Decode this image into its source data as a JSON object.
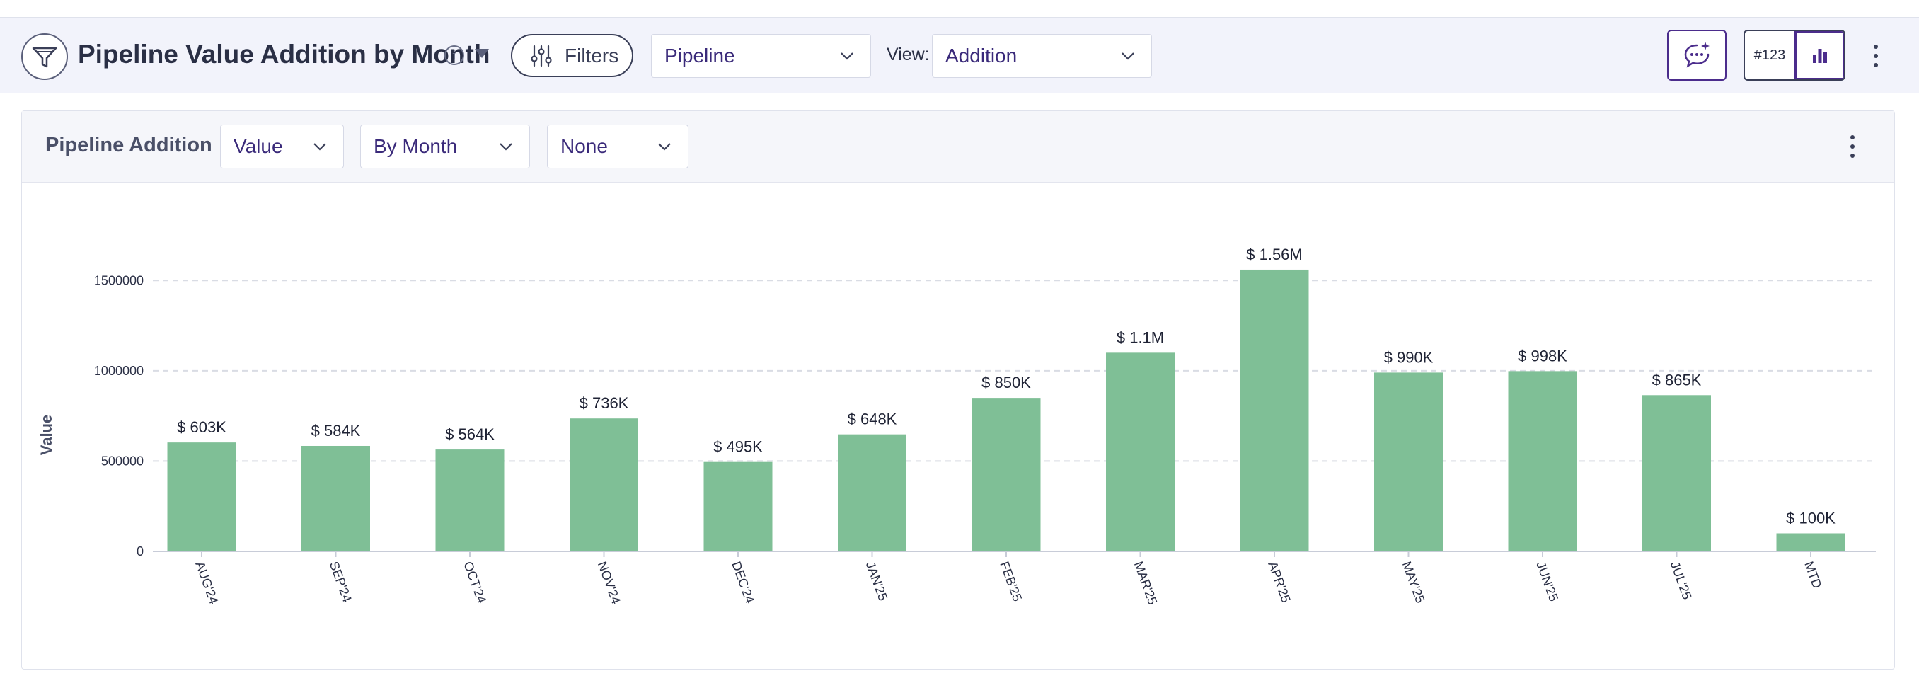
{
  "header": {
    "title": "Pipeline Value Addition by Month",
    "filters_label": "Filters",
    "pipeline_select": "Pipeline",
    "view_label": "View:",
    "view_select": "Addition",
    "number_toggle": "#123"
  },
  "card": {
    "title": "Pipeline Addition",
    "measure_select": "Value",
    "period_select": "By Month",
    "group_select": "None"
  },
  "colors": {
    "bar": "#7fbf96",
    "accent": "#4b2c8c",
    "grid": "#d9dce4"
  },
  "chart_data": {
    "type": "bar",
    "title": "Pipeline Addition",
    "xlabel": "",
    "ylabel": "Value",
    "ylim": [
      0,
      1650000
    ],
    "yticks": [
      0,
      500000,
      1000000,
      1500000
    ],
    "ytick_labels": [
      "0",
      "500000",
      "1000000",
      "1500000"
    ],
    "grid": true,
    "categories": [
      "AUG'24",
      "SEP'24",
      "OCT'24",
      "NOV'24",
      "DEC'24",
      "JAN'25",
      "FEB'25",
      "MAR'25",
      "APR'25",
      "MAY'25",
      "JUN'25",
      "JUL'25",
      "MTD"
    ],
    "values": [
      603000,
      584000,
      564000,
      736000,
      495000,
      648000,
      850000,
      1100000,
      1560000,
      990000,
      998000,
      865000,
      100000
    ],
    "data_labels": [
      "$ 603K",
      "$ 584K",
      "$ 564K",
      "$ 736K",
      "$ 495K",
      "$ 648K",
      "$ 850K",
      "$ 1.1M",
      "$ 1.56M",
      "$ 990K",
      "$ 998K",
      "$ 865K",
      "$ 100K"
    ]
  }
}
